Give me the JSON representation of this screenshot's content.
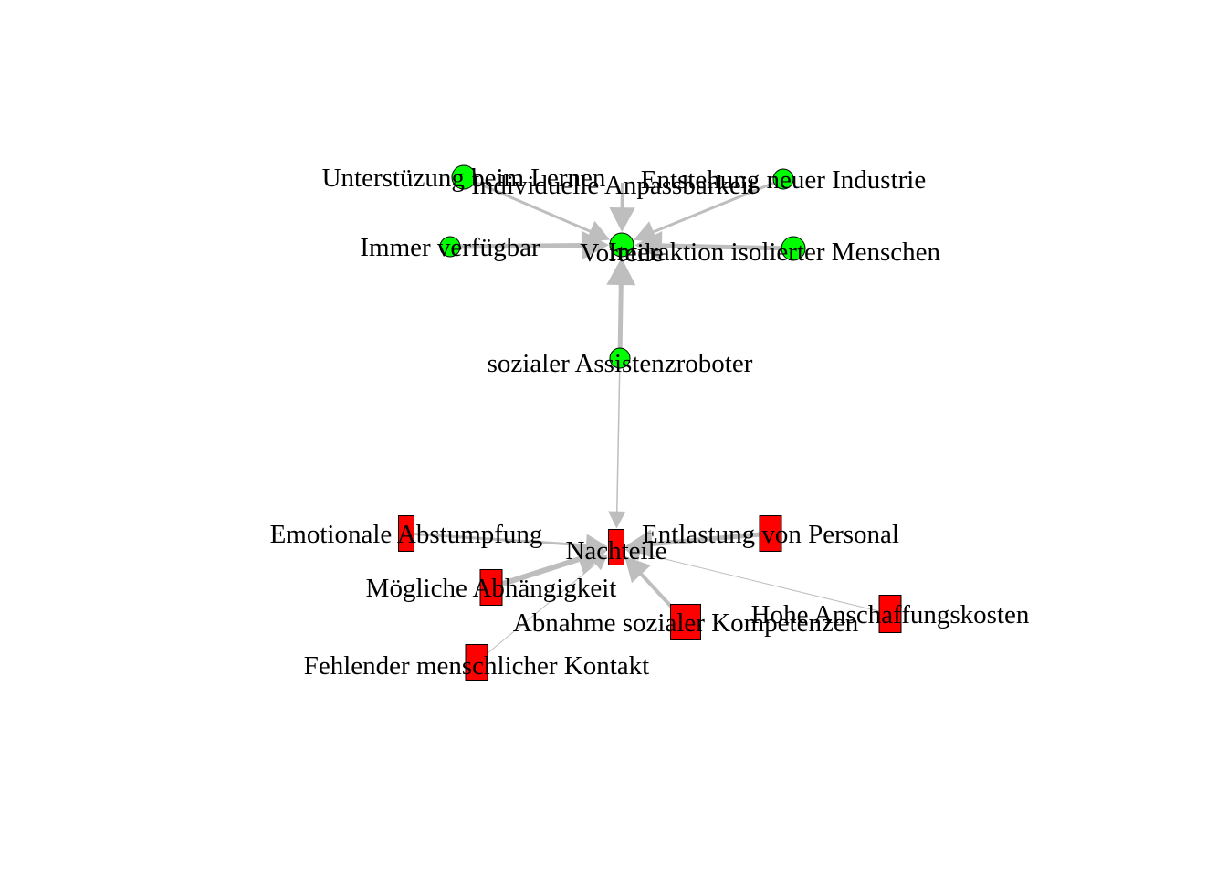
{
  "graph": {
    "edge_color": "#bebebe",
    "node_border_color": "#000000",
    "groups": {
      "vorteile": {
        "color": "#00ff00",
        "shape": "circle"
      },
      "nachteile": {
        "color": "#ff0000",
        "shape": "rectangle"
      }
    },
    "nodes": [
      {
        "id": "root",
        "label": "sozialer Assistenzroboter",
        "group": "vorteile"
      },
      {
        "id": "vorteile",
        "label": "Vorteile",
        "group": "vorteile"
      },
      {
        "id": "nachteile",
        "label": "Nachteile",
        "group": "nachteile"
      },
      {
        "id": "v1",
        "label": "Unterstüzung beim Lernen",
        "group": "vorteile"
      },
      {
        "id": "v2",
        "label": "Individuelle Anpassbarkeit",
        "group": "vorteile"
      },
      {
        "id": "v3",
        "label": "Entstehung neuer Industrie",
        "group": "vorteile"
      },
      {
        "id": "v4",
        "label": "Immer verfügbar",
        "group": "vorteile"
      },
      {
        "id": "v5",
        "label": "Interaktion isolierter Menschen",
        "group": "vorteile"
      },
      {
        "id": "n1",
        "label": "Emotionale Abstumpfung",
        "group": "nachteile"
      },
      {
        "id": "n2",
        "label": "Entlastung von Personal",
        "group": "nachteile"
      },
      {
        "id": "n3",
        "label": "Mögliche Abhängigkeit",
        "group": "nachteile"
      },
      {
        "id": "n4",
        "label": "Abnahme sozialer Kompetenzen",
        "group": "nachteile"
      },
      {
        "id": "n5",
        "label": "Hohe Anschaffungskosten",
        "group": "nachteile"
      },
      {
        "id": "n6",
        "label": "Fehlender menschlicher Kontakt",
        "group": "nachteile"
      }
    ],
    "edges": [
      {
        "from": "root",
        "to": "vorteile",
        "weight": 5
      },
      {
        "from": "root",
        "to": "nachteile",
        "weight": 1.5
      },
      {
        "from": "v1",
        "to": "vorteile",
        "weight": 3
      },
      {
        "from": "v2",
        "to": "vorteile",
        "weight": 4
      },
      {
        "from": "v3",
        "to": "vorteile",
        "weight": 3
      },
      {
        "from": "v4",
        "to": "vorteile",
        "weight": 5
      },
      {
        "from": "v5",
        "to": "vorteile",
        "weight": 5
      },
      {
        "from": "n1",
        "to": "nachteile",
        "weight": 3
      },
      {
        "from": "n2",
        "to": "nachteile",
        "weight": 5
      },
      {
        "from": "n3",
        "to": "nachteile",
        "weight": 6
      },
      {
        "from": "n4",
        "to": "nachteile",
        "weight": 4
      },
      {
        "from": "n5",
        "to": "nachteile",
        "weight": 1
      },
      {
        "from": "n6",
        "to": "nachteile",
        "weight": 1
      }
    ]
  }
}
